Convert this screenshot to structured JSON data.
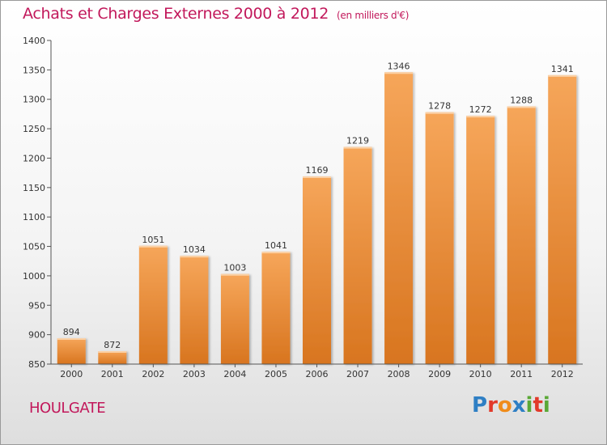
{
  "header": {
    "title": "Achats et Charges Externes 2000 à 2012",
    "subtitle": "(en milliers d'€)"
  },
  "footer": {
    "town": "HOULGATE",
    "logo_letters": [
      "P",
      "r",
      "o",
      "x",
      "i",
      "t",
      "i"
    ],
    "logo_colors": [
      "#2e7fc4",
      "#e23a2a",
      "#f08c1a",
      "#2e7fc4",
      "#5aa836",
      "#e23a2a",
      "#5aa836"
    ]
  },
  "colors": {
    "bar_top": "#f6a65a",
    "bar_bottom": "#d8751f",
    "title": "#c2185b"
  },
  "chart_data": {
    "type": "bar",
    "title": "Achats et Charges Externes 2000 à 2012",
    "subtitle": "(en milliers d'€)",
    "xlabel": "",
    "ylabel": "",
    "categories": [
      "2000",
      "2001",
      "2002",
      "2003",
      "2004",
      "2005",
      "2006",
      "2007",
      "2008",
      "2009",
      "2010",
      "2011",
      "2012"
    ],
    "values": [
      894,
      872,
      1051,
      1034,
      1003,
      1041,
      1169,
      1219,
      1346,
      1278,
      1272,
      1288,
      1341
    ],
    "value_labels": [
      "894",
      "872",
      "1051",
      "1034",
      "1003",
      "1041",
      "1169",
      "1219",
      "1346",
      "1278",
      "1272",
      "1288",
      "1341"
    ],
    "ylim": [
      850,
      1400
    ],
    "yticks": [
      850,
      900,
      950,
      1000,
      1050,
      1100,
      1150,
      1200,
      1250,
      1300,
      1350,
      1400
    ],
    "ytick_labels": [
      "850",
      "900",
      "950",
      "1000",
      "1050",
      "1100",
      "1150",
      "1200",
      "1250",
      "1300",
      "1350",
      "1400"
    ],
    "grid": false,
    "legend": "none"
  }
}
